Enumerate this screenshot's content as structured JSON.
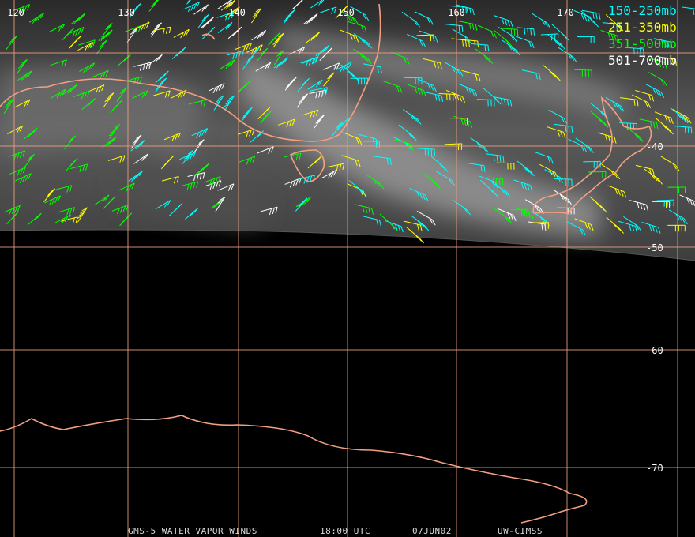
{
  "map": {
    "longitude_labels": [
      "-120",
      "-130",
      "-140",
      "-150",
      "-160",
      "-170"
    ],
    "latitude_labels": [
      "-40",
      "-50",
      "-60",
      "-70"
    ],
    "legend": [
      {
        "label": "150-250mb",
        "color": "#00ffff"
      },
      {
        "label": "251-350mb",
        "color": "#ffff00"
      },
      {
        "label": "351-500mb",
        "color": "#00ff00"
      },
      {
        "label": "501-700mb",
        "color": "#ffffff"
      }
    ],
    "footer": [
      "GMS-5 WATER VAPOR WINDS",
      "18:00 UTC",
      "07JUN02",
      "UW-CIMSS"
    ]
  }
}
